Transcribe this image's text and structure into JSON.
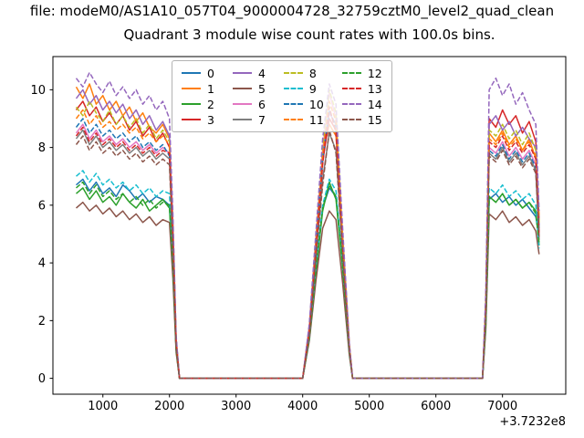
{
  "figure": {
    "top_text": "file: modeM0/AS1A10_057T04_9000004728_32759cztM0_level2_quad_clean",
    "title": "Quadrant 3 module wise count rates with 100.0s bins."
  },
  "chart_data": {
    "type": "line",
    "title": "Quadrant 3 module wise count rates with 100.0s bins.",
    "xlabel": "",
    "ylabel": "",
    "x_offset_label": "+3.7232e8",
    "xlim": [
      250,
      7950
    ],
    "ylim": [
      -0.55,
      11.15
    ],
    "xticks": [
      1000,
      2000,
      3000,
      4000,
      5000,
      6000,
      7000
    ],
    "yticks": [
      0,
      2,
      4,
      6,
      8,
      10
    ],
    "grid": false,
    "legend": {
      "position": "upper center",
      "ncol": 4
    },
    "x": [
      600,
      700,
      800,
      900,
      1000,
      1100,
      1200,
      1300,
      1400,
      1500,
      1600,
      1700,
      1800,
      1900,
      2000,
      2050,
      2100,
      2150,
      4000,
      4100,
      4200,
      4300,
      4400,
      4500,
      4600,
      4700,
      4750,
      6700,
      6750,
      6800,
      6900,
      7000,
      7100,
      7200,
      7300,
      7400,
      7500,
      7550
    ],
    "series": [
      {
        "name": "0",
        "color": "#1f77b4",
        "linestyle": "solid",
        "values": [
          6.7,
          6.9,
          6.5,
          6.8,
          6.4,
          6.6,
          6.3,
          6.7,
          6.5,
          6.2,
          6.4,
          6.1,
          6.3,
          6.2,
          6.0,
          4.0,
          1.0,
          0,
          0,
          1.5,
          3.8,
          5.9,
          6.6,
          6.3,
          3.9,
          1.0,
          0,
          0,
          2.0,
          6.2,
          6.4,
          6.1,
          6.3,
          6.0,
          6.2,
          5.9,
          5.6,
          4.9
        ]
      },
      {
        "name": "1",
        "color": "#ff7f0e",
        "linestyle": "solid",
        "values": [
          10.1,
          9.7,
          10.2,
          9.5,
          9.8,
          9.3,
          9.6,
          9.1,
          9.4,
          8.9,
          9.2,
          8.7,
          8.5,
          8.8,
          8.3,
          5.5,
          1.4,
          0,
          0,
          1.8,
          4.9,
          7.8,
          8.8,
          8.4,
          5.0,
          1.2,
          0,
          0,
          2.6,
          8.5,
          8.2,
          8.6,
          8.1,
          8.4,
          7.9,
          8.3,
          7.6,
          5.2
        ]
      },
      {
        "name": "2",
        "color": "#2ca02c",
        "linestyle": "solid",
        "values": [
          6.4,
          6.6,
          6.2,
          6.5,
          6.1,
          6.3,
          6.0,
          6.4,
          6.1,
          5.9,
          6.2,
          5.8,
          6.0,
          6.2,
          5.9,
          3.9,
          1.0,
          0,
          0,
          1.4,
          3.7,
          5.8,
          6.8,
          6.2,
          3.8,
          0.9,
          0,
          0,
          1.9,
          6.3,
          6.1,
          6.4,
          6.0,
          6.2,
          5.9,
          6.1,
          5.8,
          4.6
        ]
      },
      {
        "name": "3",
        "color": "#d62728",
        "linestyle": "solid",
        "values": [
          9.3,
          9.6,
          9.1,
          9.4,
          8.9,
          9.2,
          8.8,
          9.1,
          8.6,
          8.9,
          8.4,
          8.7,
          8.2,
          8.5,
          8.0,
          5.2,
          1.3,
          0,
          0,
          1.7,
          4.7,
          7.5,
          9.0,
          8.6,
          4.8,
          1.1,
          0,
          0,
          2.7,
          9.0,
          8.7,
          9.3,
          8.8,
          9.1,
          8.5,
          8.9,
          8.2,
          5.5
        ]
      },
      {
        "name": "4",
        "color": "#9467bd",
        "linestyle": "solid",
        "values": [
          9.7,
          10.0,
          9.5,
          9.8,
          9.3,
          9.6,
          9.2,
          9.5,
          9.0,
          9.3,
          8.8,
          9.1,
          8.6,
          8.9,
          8.4,
          5.4,
          1.4,
          0,
          0,
          1.8,
          4.8,
          7.7,
          9.2,
          8.8,
          4.9,
          1.2,
          0,
          0,
          2.6,
          8.8,
          9.1,
          8.6,
          8.9,
          8.4,
          8.7,
          8.3,
          8.0,
          5.3
        ]
      },
      {
        "name": "5",
        "color": "#8c564b",
        "linestyle": "solid",
        "values": [
          5.9,
          6.1,
          5.8,
          6.0,
          5.7,
          5.9,
          5.6,
          5.8,
          5.5,
          5.7,
          5.4,
          5.6,
          5.3,
          5.5,
          5.4,
          3.5,
          0.9,
          0,
          0,
          1.3,
          3.4,
          5.2,
          5.8,
          5.5,
          3.3,
          0.8,
          0,
          0,
          1.7,
          5.7,
          5.5,
          5.8,
          5.4,
          5.6,
          5.3,
          5.5,
          5.1,
          4.3
        ]
      },
      {
        "name": "6",
        "color": "#e377c2",
        "linestyle": "solid",
        "values": [
          8.5,
          8.8,
          8.3,
          8.6,
          8.2,
          8.4,
          8.1,
          8.3,
          8.0,
          8.2,
          7.9,
          8.1,
          7.8,
          8.0,
          7.8,
          4.9,
          1.2,
          0,
          0,
          1.6,
          4.5,
          7.9,
          9.9,
          9.0,
          4.6,
          1.0,
          0,
          0,
          2.4,
          8.0,
          7.8,
          8.2,
          7.7,
          8.0,
          7.6,
          7.9,
          7.4,
          5.0
        ]
      },
      {
        "name": "7",
        "color": "#7f7f7f",
        "linestyle": "solid",
        "values": [
          8.3,
          8.6,
          8.1,
          8.4,
          8.0,
          8.2,
          7.9,
          8.1,
          7.8,
          8.0,
          7.7,
          7.9,
          7.6,
          7.8,
          7.6,
          4.7,
          1.2,
          0,
          0,
          1.5,
          4.3,
          6.9,
          8.5,
          7.9,
          4.4,
          1.0,
          0,
          0,
          2.3,
          7.8,
          7.6,
          8.0,
          7.5,
          7.8,
          7.4,
          7.7,
          7.2,
          4.8
        ]
      },
      {
        "name": "8",
        "color": "#bcbd22",
        "linestyle": "dashed",
        "values": [
          9.4,
          9.1,
          9.6,
          9.2,
          8.9,
          9.3,
          8.8,
          9.1,
          8.7,
          9.0,
          8.5,
          8.8,
          8.3,
          8.6,
          8.2,
          5.3,
          1.3,
          0,
          0,
          1.7,
          4.8,
          8.0,
          10.0,
          9.2,
          4.9,
          1.1,
          0,
          0,
          2.6,
          8.6,
          8.4,
          8.8,
          8.3,
          8.6,
          8.1,
          8.5,
          7.9,
          5.4
        ]
      },
      {
        "name": "9",
        "color": "#17becf",
        "linestyle": "dashed",
        "values": [
          7.0,
          7.2,
          6.8,
          7.1,
          6.7,
          6.9,
          6.6,
          6.8,
          6.5,
          6.7,
          6.4,
          6.6,
          6.3,
          6.5,
          6.4,
          4.2,
          1.1,
          0,
          0,
          1.4,
          3.9,
          6.0,
          6.9,
          6.5,
          4.0,
          0.9,
          0,
          0,
          2.0,
          6.6,
          6.4,
          6.7,
          6.3,
          6.5,
          6.2,
          6.4,
          6.0,
          4.5
        ]
      },
      {
        "name": "10",
        "color": "#1f77b4",
        "linestyle": "dashed",
        "values": [
          8.7,
          9.0,
          8.5,
          8.8,
          8.4,
          8.6,
          8.3,
          8.5,
          8.2,
          8.4,
          8.0,
          8.2,
          7.9,
          8.1,
          7.7,
          5.0,
          1.2,
          0,
          0,
          1.6,
          4.6,
          7.6,
          9.3,
          8.7,
          4.7,
          1.0,
          0,
          0,
          2.4,
          7.9,
          7.7,
          8.1,
          7.6,
          7.9,
          7.5,
          7.8,
          7.3,
          5.1
        ]
      },
      {
        "name": "11",
        "color": "#ff7f0e",
        "linestyle": "dashed",
        "values": [
          9.0,
          9.3,
          8.8,
          9.1,
          8.7,
          8.9,
          8.6,
          8.8,
          8.5,
          8.7,
          8.3,
          8.5,
          8.2,
          8.4,
          8.1,
          5.1,
          1.3,
          0,
          0,
          1.7,
          4.7,
          7.7,
          9.6,
          8.9,
          4.8,
          1.1,
          0,
          0,
          2.5,
          8.3,
          8.1,
          8.5,
          8.0,
          8.3,
          7.9,
          8.2,
          7.7,
          5.6
        ]
      },
      {
        "name": "12",
        "color": "#2ca02c",
        "linestyle": "dashed",
        "values": [
          6.6,
          6.8,
          6.4,
          6.7,
          6.3,
          6.5,
          6.2,
          6.4,
          6.1,
          6.3,
          6.0,
          6.2,
          5.9,
          6.1,
          6.0,
          4.0,
          1.0,
          0,
          0,
          1.4,
          3.8,
          5.9,
          6.7,
          6.3,
          3.9,
          0.9,
          0,
          0,
          1.9,
          6.3,
          6.1,
          6.4,
          6.0,
          6.2,
          5.9,
          6.1,
          5.7,
          4.7
        ]
      },
      {
        "name": "13",
        "color": "#d62728",
        "linestyle": "dashed",
        "values": [
          8.4,
          8.7,
          8.2,
          8.5,
          8.1,
          8.3,
          8.0,
          8.2,
          7.9,
          8.1,
          7.8,
          8.0,
          7.7,
          7.9,
          7.8,
          4.8,
          1.2,
          0,
          0,
          1.6,
          4.4,
          7.4,
          9.4,
          8.5,
          4.5,
          1.0,
          0,
          0,
          2.4,
          8.2,
          8.0,
          8.4,
          7.9,
          8.2,
          7.8,
          8.1,
          7.6,
          5.0
        ]
      },
      {
        "name": "14",
        "color": "#9467bd",
        "linestyle": "dashed",
        "values": [
          10.4,
          10.1,
          10.6,
          10.2,
          9.9,
          10.3,
          9.8,
          10.1,
          9.7,
          10.0,
          9.5,
          9.8,
          9.3,
          9.6,
          9.0,
          5.8,
          1.5,
          0,
          0,
          1.9,
          5.1,
          8.3,
          10.2,
          9.5,
          5.2,
          1.2,
          0,
          0,
          3.0,
          10.0,
          10.4,
          9.8,
          10.2,
          9.5,
          9.9,
          9.3,
          8.8,
          5.8
        ]
      },
      {
        "name": "15",
        "color": "#8c564b",
        "linestyle": "dashed",
        "values": [
          8.1,
          8.4,
          7.9,
          8.2,
          7.8,
          8.0,
          7.7,
          7.9,
          7.6,
          7.8,
          7.5,
          7.7,
          7.4,
          7.6,
          7.4,
          4.6,
          1.1,
          0,
          0,
          1.5,
          4.2,
          6.7,
          8.6,
          7.8,
          4.3,
          1.0,
          0,
          0,
          2.3,
          7.7,
          7.5,
          7.9,
          7.4,
          7.7,
          7.3,
          7.6,
          7.1,
          4.9
        ]
      }
    ]
  }
}
